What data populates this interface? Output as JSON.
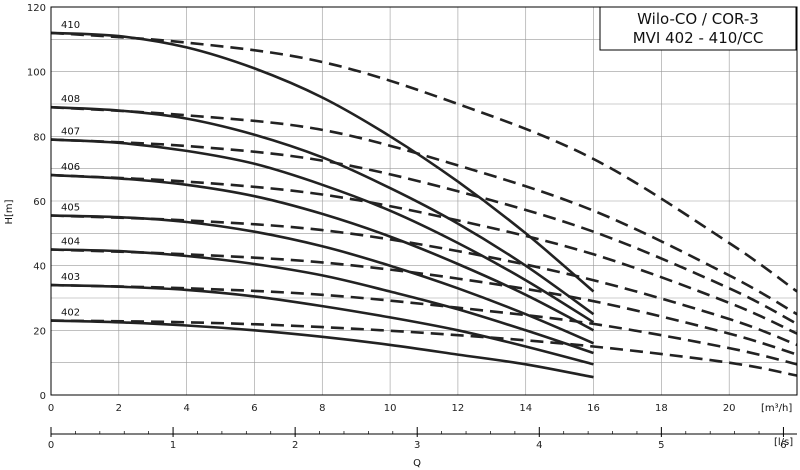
{
  "chart_data": {
    "type": "line",
    "title_lines": [
      "Wilo-CO / COR-3",
      "MVI 402 - 410/CC"
    ],
    "ylabel": "H[m]",
    "xlabel": "Q",
    "x_unit_top": "[m³/h]",
    "x_unit_bottom": "[l/s]",
    "xlim": [
      0,
      22
    ],
    "ylim": [
      0,
      120
    ],
    "x_ticks": [
      0,
      2,
      4,
      6,
      8,
      10,
      12,
      14,
      16,
      18,
      20
    ],
    "x_ticks_ls": [
      0,
      1,
      2,
      3,
      4,
      5,
      6
    ],
    "y_ticks": [
      0,
      20,
      40,
      60,
      80,
      100,
      120
    ],
    "grid": true,
    "solid_series": [
      {
        "name": "410",
        "x": [
          0,
          2,
          4,
          6,
          8,
          10,
          12,
          14,
          16
        ],
        "y": [
          112,
          111,
          107.5,
          101,
          92,
          80,
          66,
          50,
          32
        ]
      },
      {
        "name": "408",
        "x": [
          0,
          2,
          4,
          6,
          8,
          10,
          12,
          14,
          16
        ],
        "y": [
          89,
          88,
          85.5,
          80.5,
          73.5,
          64,
          53,
          40,
          25
        ]
      },
      {
        "name": "407",
        "x": [
          0,
          2,
          4,
          6,
          8,
          10,
          12,
          14,
          16
        ],
        "y": [
          79,
          78,
          75.5,
          71.5,
          65,
          57,
          47,
          35.5,
          22.5
        ]
      },
      {
        "name": "406",
        "x": [
          0,
          2,
          4,
          6,
          8,
          10,
          12,
          14,
          16
        ],
        "y": [
          68,
          67,
          65,
          61.5,
          56,
          49,
          40.5,
          31,
          20
        ]
      },
      {
        "name": "405",
        "x": [
          0,
          2,
          4,
          6,
          8,
          10,
          12,
          14,
          16
        ],
        "y": [
          55.5,
          55,
          53.5,
          50.5,
          46,
          40,
          33,
          25,
          16
        ]
      },
      {
        "name": "404",
        "x": [
          0,
          2,
          4,
          6,
          8,
          10,
          12,
          14,
          16
        ],
        "y": [
          45,
          44.5,
          43,
          40.5,
          37,
          32,
          26.5,
          20,
          13
        ]
      },
      {
        "name": "403",
        "x": [
          0,
          2,
          4,
          6,
          8,
          10,
          12,
          14,
          16
        ],
        "y": [
          34,
          33.5,
          32.5,
          30.5,
          27.5,
          24,
          20,
          15,
          9.5
        ]
      },
      {
        "name": "402",
        "x": [
          0,
          2,
          4,
          6,
          8,
          10,
          12,
          14,
          16
        ],
        "y": [
          23,
          22.5,
          21.5,
          20,
          18,
          15.5,
          12.5,
          9.5,
          5.5
        ]
      }
    ],
    "dashed_series": [
      {
        "name": "410",
        "x": [
          0,
          4,
          8,
          12,
          16,
          20,
          22
        ],
        "y": [
          112,
          109,
          103,
          90,
          73,
          47,
          32
        ]
      },
      {
        "name": "408",
        "x": [
          0,
          4,
          8,
          12,
          16,
          20,
          22
        ],
        "y": [
          89,
          86.5,
          82,
          71,
          57,
          37,
          25
        ]
      },
      {
        "name": "407",
        "x": [
          0,
          4,
          8,
          12,
          16,
          20,
          22
        ],
        "y": [
          79,
          77,
          72.5,
          63,
          50.5,
          33,
          22
        ]
      },
      {
        "name": "406",
        "x": [
          0,
          4,
          8,
          12,
          16,
          20,
          22
        ],
        "y": [
          68,
          66,
          62,
          54,
          43.5,
          28.5,
          19
        ]
      },
      {
        "name": "405",
        "x": [
          0,
          4,
          8,
          12,
          16,
          20,
          22
        ],
        "y": [
          55.5,
          54,
          51,
          44.5,
          35.5,
          23.5,
          15.5
        ]
      },
      {
        "name": "404",
        "x": [
          0,
          4,
          8,
          12,
          16,
          20,
          22
        ],
        "y": [
          45,
          43.5,
          41,
          36,
          29,
          19,
          12.5
        ]
      },
      {
        "name": "403",
        "x": [
          0,
          4,
          8,
          12,
          16,
          20,
          22
        ],
        "y": [
          34,
          33,
          31,
          27,
          22,
          14.5,
          9.5
        ]
      },
      {
        "name": "402",
        "x": [
          0,
          4,
          8,
          12,
          16,
          20,
          22
        ],
        "y": [
          23,
          22.5,
          21,
          18.5,
          15,
          10,
          6
        ]
      }
    ]
  }
}
